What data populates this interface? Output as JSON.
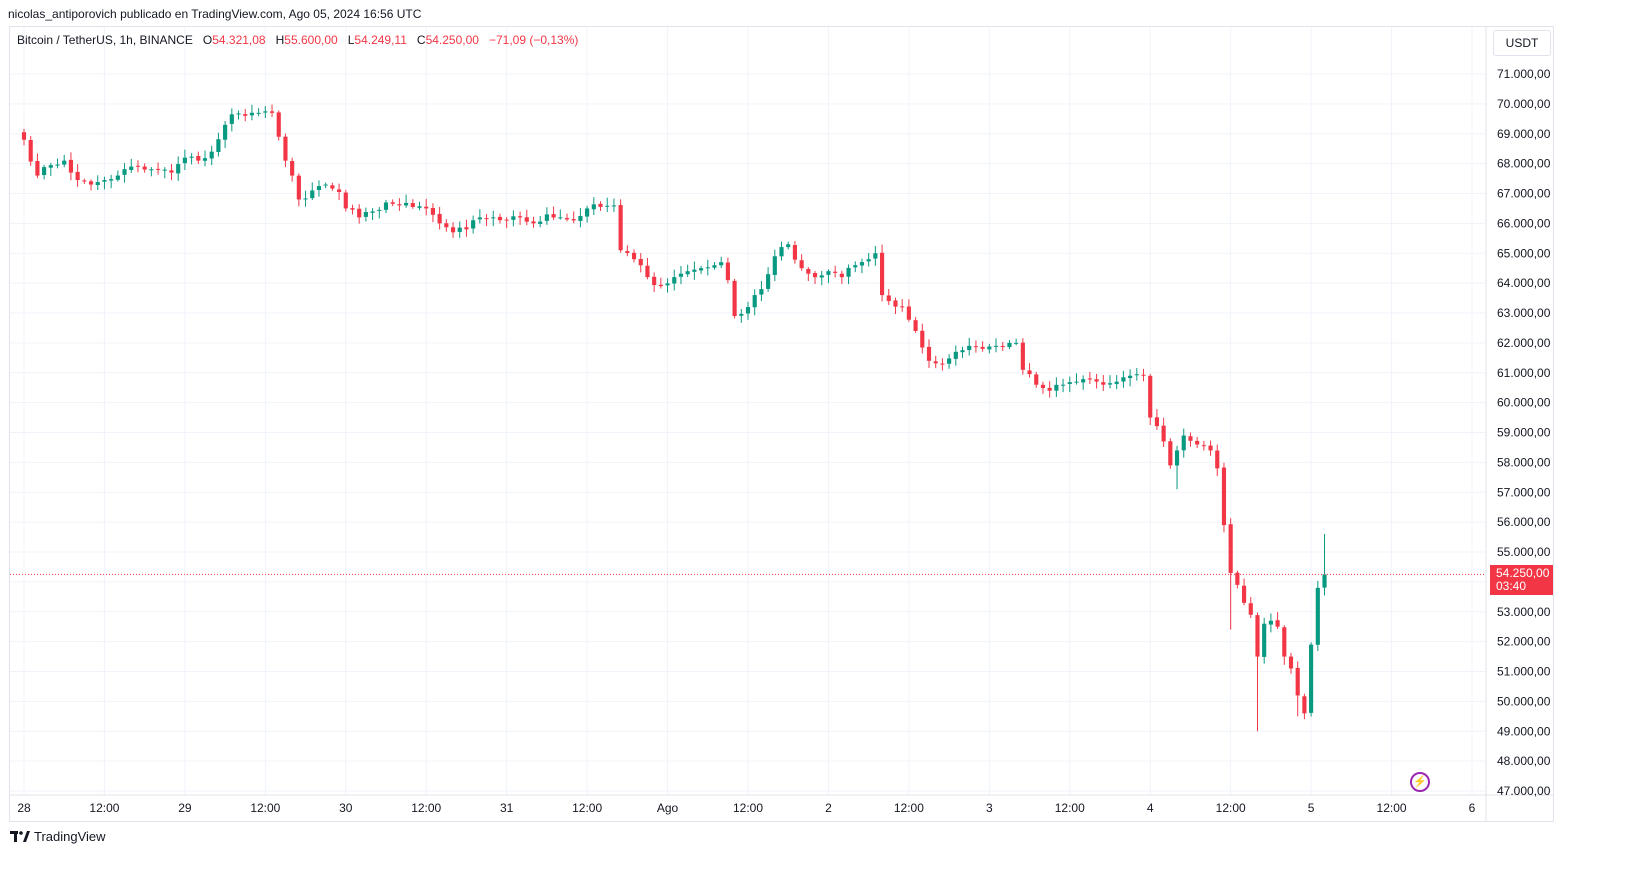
{
  "header": {
    "published_line": "nicolas_antiporovich publicado en TradingView.com, Ago 05, 2024 16:56 UTC"
  },
  "legend": {
    "symbol": "Bitcoin / TetherUS, 1h, BINANCE",
    "open_label": "O",
    "open_value": "54.321,08",
    "high_label": "H",
    "high_value": "55.600,00",
    "low_label": "L",
    "low_value": "54.249,11",
    "close_label": "C",
    "close_value": "54.250,00",
    "change": "−71,09 (−0,13%)"
  },
  "currency_button": "USDT",
  "last_price": {
    "value": "54.250,00",
    "countdown": "03:40"
  },
  "footer": {
    "brand": "TradingView"
  },
  "colors": {
    "up": "#089981",
    "down": "#f23645",
    "grid": "#f0f3fa",
    "bolt": "#9c27b0"
  },
  "chart_data": {
    "type": "candlestick",
    "y_axis": {
      "ticks": [
        "71.000,00",
        "70.000,00",
        "69.000,00",
        "68.000,00",
        "67.000,00",
        "66.000,00",
        "65.000,00",
        "64.000,00",
        "63.000,00",
        "62.000,00",
        "61.000,00",
        "60.000,00",
        "59.000,00",
        "58.000,00",
        "57.000,00",
        "56.000,00",
        "55.000,00",
        "54.000,00",
        "53.000,00",
        "52.000,00",
        "51.000,00",
        "50.000,00",
        "49.000,00",
        "48.000,00",
        "47.000,00"
      ],
      "tick_values": [
        71000,
        70000,
        69000,
        68000,
        67000,
        66000,
        65000,
        64000,
        63000,
        62000,
        61000,
        60000,
        59000,
        58000,
        57000,
        56000,
        55000,
        54000,
        53000,
        52000,
        51000,
        50000,
        49000,
        48000,
        47000
      ],
      "range": [
        46930,
        72150
      ]
    },
    "x_axis": {
      "ticks": [
        "28",
        "12:00",
        "29",
        "12:00",
        "30",
        "12:00",
        "31",
        "12:00",
        "Ago",
        "12:00",
        "2",
        "12:00",
        "3",
        "12:00",
        "4",
        "12:00",
        "5",
        "12:00",
        "6"
      ],
      "tick_hours": [
        0,
        12,
        24,
        36,
        48,
        60,
        72,
        84,
        96,
        108,
        120,
        132,
        144,
        156,
        168,
        180,
        192,
        204,
        216
      ]
    },
    "last_price": 54250,
    "anchors": [
      [
        0,
        68800
      ],
      [
        2,
        67600
      ],
      [
        4,
        67950
      ],
      [
        6,
        68100
      ],
      [
        8,
        67450
      ],
      [
        10,
        67300
      ],
      [
        12,
        67450
      ],
      [
        14,
        67600
      ],
      [
        16,
        67900
      ],
      [
        18,
        67800
      ],
      [
        20,
        67800
      ],
      [
        22,
        67700
      ],
      [
        24,
        68200
      ],
      [
        26,
        68100
      ],
      [
        28,
        68400
      ],
      [
        30,
        69300
      ],
      [
        31,
        69650
      ],
      [
        33,
        69600
      ],
      [
        35,
        69700
      ],
      [
        36,
        69750
      ],
      [
        37,
        69700
      ],
      [
        38,
        68900
      ],
      [
        39,
        68100
      ],
      [
        40,
        67600
      ],
      [
        41,
        66800
      ],
      [
        43,
        67100
      ],
      [
        45,
        67300
      ],
      [
        47,
        67050
      ],
      [
        48,
        66500
      ],
      [
        50,
        66200
      ],
      [
        52,
        66400
      ],
      [
        54,
        66700
      ],
      [
        56,
        66600
      ],
      [
        58,
        66550
      ],
      [
        60,
        66500
      ],
      [
        62,
        66000
      ],
      [
        64,
        65700
      ],
      [
        66,
        65800
      ],
      [
        68,
        66200
      ],
      [
        70,
        66200
      ],
      [
        72,
        66100
      ],
      [
        74,
        66200
      ],
      [
        76,
        66000
      ],
      [
        78,
        66300
      ],
      [
        80,
        66200
      ],
      [
        82,
        66100
      ],
      [
        84,
        66500
      ],
      [
        86,
        66550
      ],
      [
        88,
        66600
      ],
      [
        89,
        65100
      ],
      [
        91,
        64800
      ],
      [
        93,
        64200
      ],
      [
        95,
        63900
      ],
      [
        97,
        64200
      ],
      [
        99,
        64400
      ],
      [
        101,
        64500
      ],
      [
        103,
        64600
      ],
      [
        104,
        64700
      ],
      [
        105,
        64100
      ],
      [
        106,
        62900
      ],
      [
        108,
        63200
      ],
      [
        109,
        63600
      ],
      [
        110,
        63800
      ],
      [
        111,
        64300
      ],
      [
        112,
        64900
      ],
      [
        114,
        65300
      ],
      [
        116,
        64500
      ],
      [
        118,
        64200
      ],
      [
        120,
        64400
      ],
      [
        122,
        64200
      ],
      [
        124,
        64600
      ],
      [
        126,
        64800
      ],
      [
        127,
        65000
      ],
      [
        128,
        63600
      ],
      [
        129,
        63400
      ],
      [
        131,
        63200
      ],
      [
        133,
        62400
      ],
      [
        135,
        61400
      ],
      [
        137,
        61300
      ],
      [
        139,
        61700
      ],
      [
        141,
        61900
      ],
      [
        143,
        61800
      ],
      [
        145,
        61900
      ],
      [
        147,
        62000
      ],
      [
        148,
        62000
      ],
      [
        149,
        61100
      ],
      [
        151,
        60600
      ],
      [
        153,
        60400
      ],
      [
        155,
        60600
      ],
      [
        157,
        60700
      ],
      [
        159,
        60800
      ],
      [
        161,
        60600
      ],
      [
        163,
        60700
      ],
      [
        165,
        60900
      ],
      [
        166,
        60950
      ],
      [
        167,
        60900
      ],
      [
        168,
        59500
      ],
      [
        170,
        58700
      ],
      [
        171,
        57900
      ],
      [
        172,
        58400
      ],
      [
        173,
        58900
      ],
      [
        175,
        58600
      ],
      [
        177,
        58400
      ],
      [
        178,
        57800
      ],
      [
        179,
        55900
      ],
      [
        180,
        54300
      ],
      [
        181,
        53900
      ],
      [
        182,
        53300
      ],
      [
        183,
        52900
      ],
      [
        184,
        51500
      ],
      [
        185,
        52600
      ],
      [
        186,
        52700
      ],
      [
        187,
        52500
      ],
      [
        188,
        51500
      ],
      [
        189,
        51100
      ],
      [
        190,
        50200
      ],
      [
        191,
        49600
      ],
      [
        192,
        51900
      ],
      [
        193,
        53800
      ],
      [
        194,
        54250
      ]
    ],
    "spikes": {
      "180": 52400,
      "184": 49000,
      "190": 49500,
      "172": 57100,
      "194": 55600
    }
  }
}
